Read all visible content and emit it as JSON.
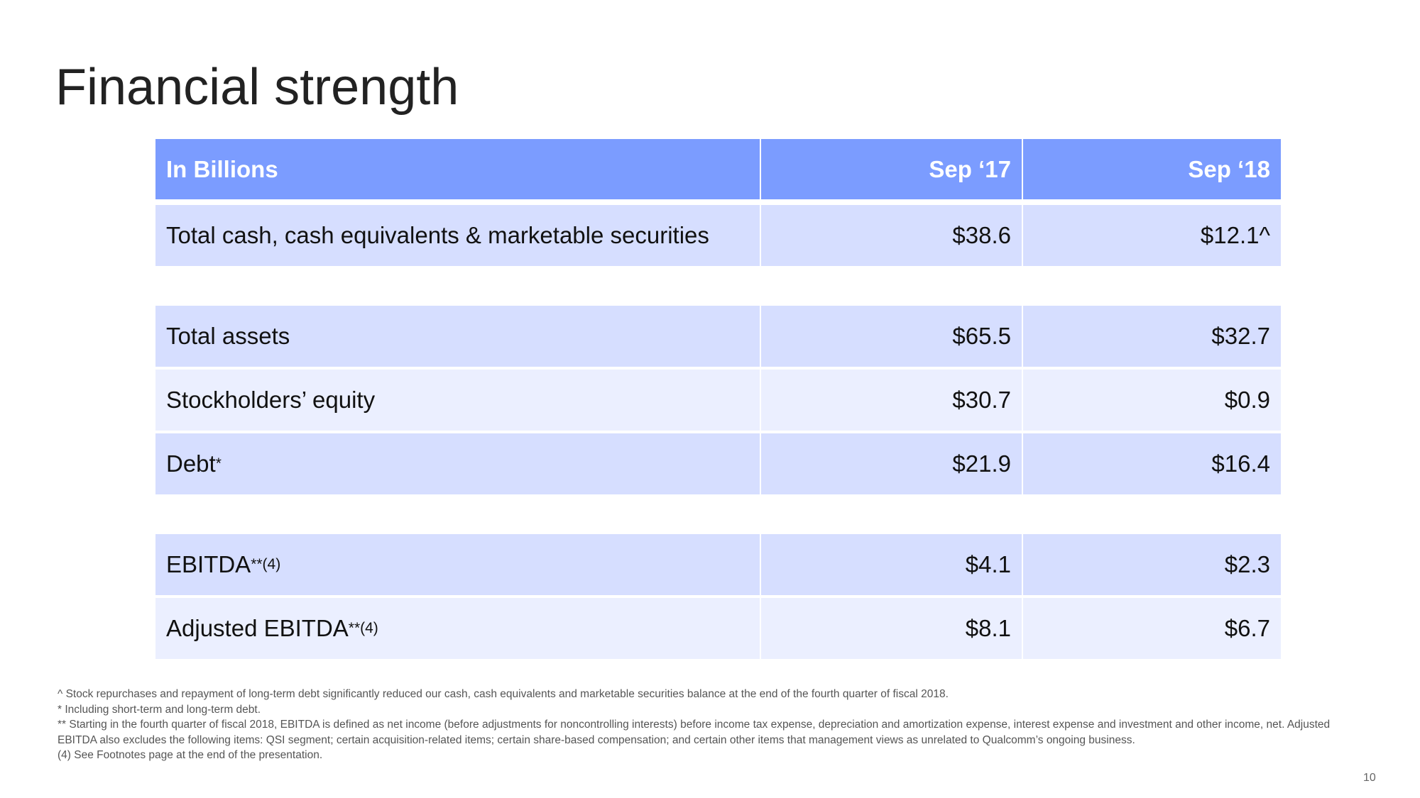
{
  "title": "Financial strength",
  "table": {
    "header": [
      "In Billions",
      "Sep ‘17",
      "Sep ‘18"
    ],
    "groups": [
      [
        {
          "label": "Total cash, cash equivalents & marketable securities",
          "values": [
            "$38.6",
            "$12.1^"
          ]
        }
      ],
      [
        {
          "label": "Total assets",
          "values": [
            "$65.5",
            "$32.7"
          ]
        },
        {
          "label": "Stockholders’ equity",
          "values": [
            "$30.7",
            "$0.9"
          ]
        },
        {
          "label": "Debt",
          "note": "*",
          "values": [
            "$21.9",
            "$16.4"
          ]
        }
      ],
      [
        {
          "label": "EBITDA",
          "note": "**(4)",
          "values": [
            "$4.1",
            "$2.3"
          ]
        },
        {
          "label": "Adjusted EBITDA",
          "note": "**(4)",
          "values": [
            "$8.1",
            "$6.7"
          ]
        }
      ]
    ]
  },
  "footnotes": [
    "^ Stock repurchases and repayment of long-term debt significantly reduced our cash, cash equivalents and marketable securities balance at the end of the fourth quarter of fiscal 2018.",
    "* Including short-term and long-term debt.",
    "** Starting in the fourth quarter of fiscal 2018, EBITDA is defined as net income (before adjustments for noncontrolling interests) before income tax expense, depreciation and amortization expense, interest expense and investment and other income, net. Adjusted EBITDA also excludes the following items: QSI segment; certain acquisition-related items; certain share-based compensation; and certain other items that management views as unrelated to Qualcomm’s ongoing business.",
    "(4) See Footnotes page at the end of the presentation."
  ],
  "page_number": "10"
}
